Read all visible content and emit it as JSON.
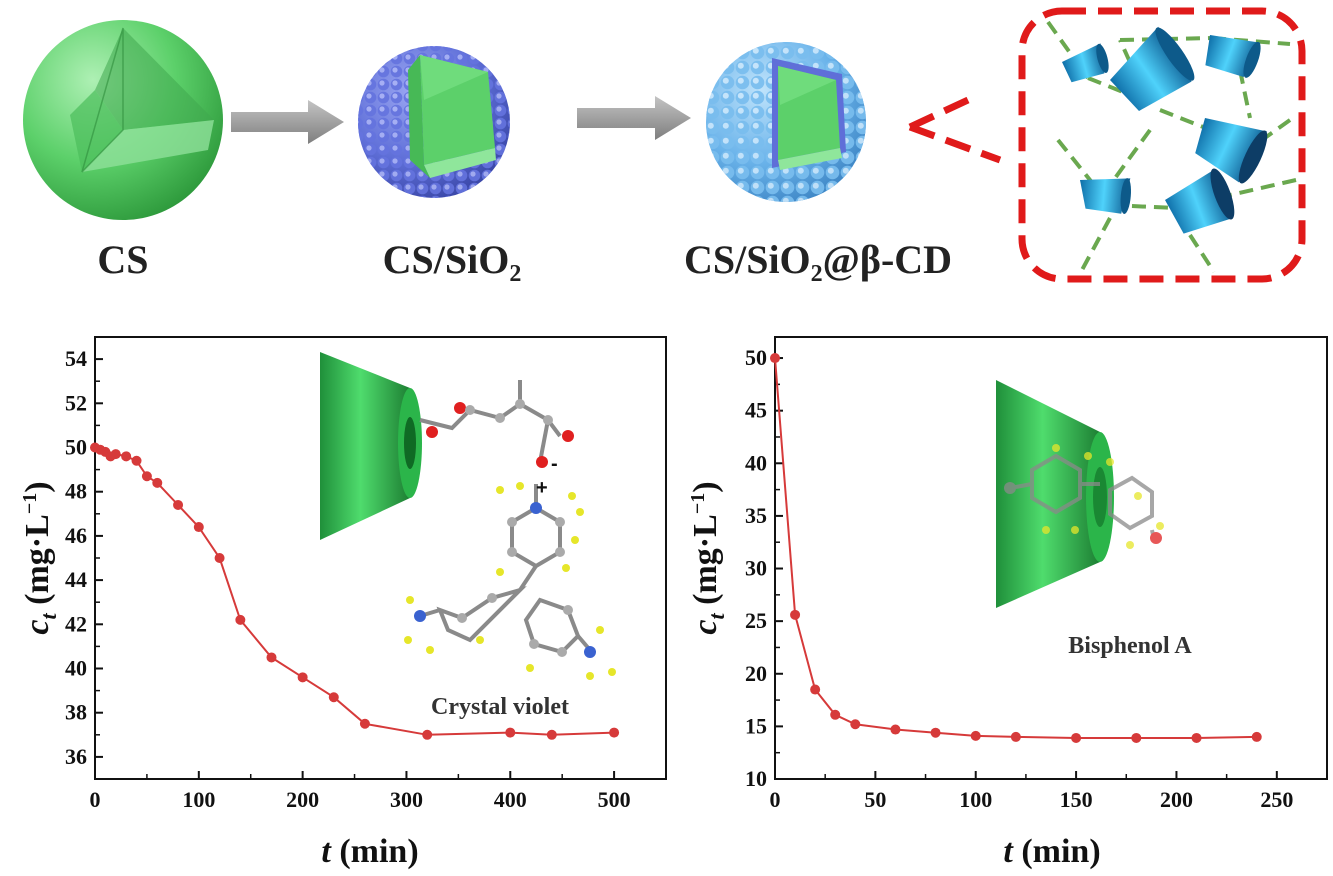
{
  "top_row": {
    "labels": [
      "CS",
      "CS/SiO₂",
      "CS/SiO₂@β-CD"
    ]
  },
  "colors": {
    "core_green": "#5cd06a",
    "silica_blue": "#5f6fd8",
    "cd_shell_blue": "#6ab3ea",
    "cd_cone_cyan": "#2ab8ea",
    "inset_border": "#e01a1a",
    "link_green": "#6aa84f",
    "series_red": "#d63a3a",
    "arrow_grey": "#9a9a9a"
  },
  "insets": {
    "left_label": "Crystal violet",
    "left_charge_minus": "-",
    "left_charge_plus": "+",
    "right_label": "Bisphenol A"
  },
  "chart_data": [
    {
      "type": "line",
      "title": "",
      "xlabel_italic": "t",
      "xlabel_rest": " (min)",
      "ylabel_italic": "c",
      "ylabel_sub": "t",
      "ylabel_rest": " (mg·L",
      "ylabel_sup": "−1",
      "ylabel_close": ")",
      "xlim": [
        0,
        550
      ],
      "ylim": [
        35,
        55
      ],
      "xticks": [
        0,
        100,
        200,
        300,
        400,
        500
      ],
      "yticks": [
        36,
        38,
        40,
        42,
        44,
        46,
        48,
        50,
        52,
        54
      ],
      "grid": false,
      "series": [
        {
          "x": [
            0,
            5,
            10,
            15,
            20,
            30,
            40,
            50,
            60,
            80,
            100,
            120,
            140,
            170,
            200,
            230,
            260,
            320,
            400,
            440,
            500
          ],
          "y": [
            50.0,
            49.9,
            49.8,
            49.6,
            49.7,
            49.6,
            49.4,
            48.7,
            48.4,
            47.4,
            46.4,
            45.0,
            42.2,
            40.5,
            39.6,
            38.7,
            37.5,
            37.0,
            37.1,
            37.0,
            37.1
          ]
        }
      ]
    },
    {
      "type": "line",
      "title": "",
      "xlabel_italic": "t",
      "xlabel_rest": " (min)",
      "ylabel_italic": "c",
      "ylabel_sub": "t",
      "ylabel_rest": " (mg·L",
      "ylabel_sup": "−1",
      "ylabel_close": ")",
      "xlim": [
        0,
        275
      ],
      "ylim": [
        10,
        52
      ],
      "xticks": [
        0,
        50,
        100,
        150,
        200,
        250
      ],
      "yticks": [
        10,
        15,
        20,
        25,
        30,
        35,
        40,
        45,
        50
      ],
      "grid": false,
      "series": [
        {
          "x": [
            0,
            10,
            20,
            30,
            40,
            60,
            80,
            100,
            120,
            150,
            180,
            210,
            240
          ],
          "y": [
            50.0,
            25.6,
            18.5,
            16.1,
            15.2,
            14.7,
            14.4,
            14.1,
            14.0,
            13.9,
            13.9,
            13.9,
            14.0
          ]
        }
      ]
    }
  ]
}
